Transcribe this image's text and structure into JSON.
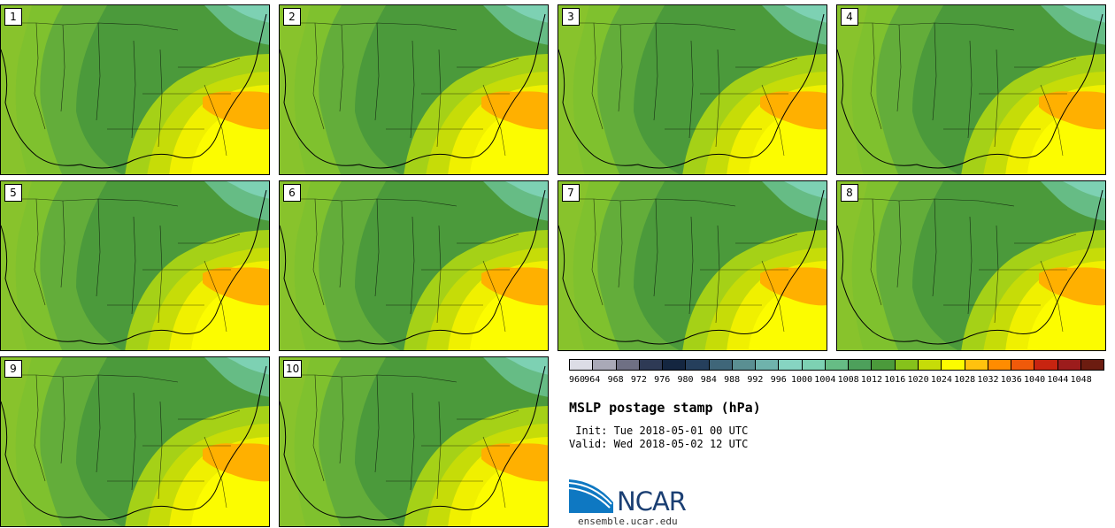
{
  "panels": [
    {
      "label": "1"
    },
    {
      "label": "2"
    },
    {
      "label": "3"
    },
    {
      "label": "4"
    },
    {
      "label": "5"
    },
    {
      "label": "6"
    },
    {
      "label": "7"
    },
    {
      "label": "8"
    },
    {
      "label": "9"
    },
    {
      "label": "10"
    }
  ],
  "colorbar": {
    "levels": [
      "960",
      "964",
      "968",
      "972",
      "976",
      "980",
      "984",
      "988",
      "992",
      "996",
      "1000",
      "1004",
      "1008",
      "1012",
      "1016",
      "1020",
      "1024",
      "1028",
      "1032",
      "1036",
      "1040",
      "1044",
      "1048"
    ],
    "colors": [
      "#dcdde6",
      "#a9a9b7",
      "#6f7084",
      "#2e3a55",
      "#142640",
      "#253f5c",
      "#3f6679",
      "#5a8f92",
      "#6fb3ac",
      "#86d4c2",
      "#7dd1b3",
      "#66bc85",
      "#4da05b",
      "#4b9a3b",
      "#86c21b",
      "#c6dc08",
      "#fcfc00",
      "#ffc20e",
      "#ff8c00",
      "#f05a0a",
      "#c82410",
      "#9c1c1c",
      "#6c1c10"
    ]
  },
  "title": "MSLP postage stamp (hPa)",
  "init": " Init: Tue 2018-05-01 00 UTC",
  "valid": "Valid: Wed 2018-05-02 12 UTC",
  "logo": {
    "text": "NCAR",
    "url": "ensemble.ucar.edu"
  }
}
